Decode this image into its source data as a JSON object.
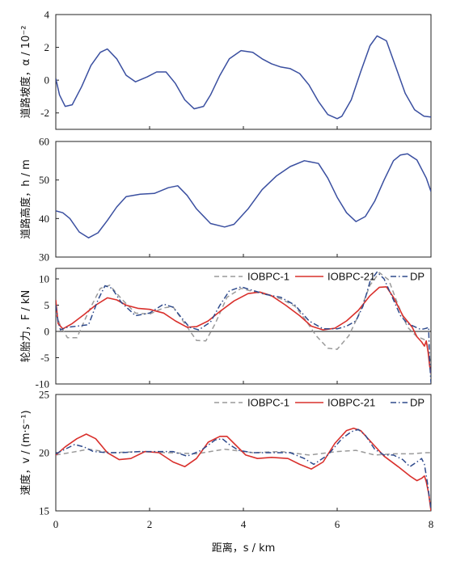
{
  "chart_data": [
    {
      "type": "line",
      "ylabel": "道路坡度，α / 10⁻²",
      "ylim": [
        -3,
        4
      ],
      "yticks": [
        "4",
        "2",
        "0",
        "-2"
      ],
      "ytick_values": [
        4,
        2,
        0,
        -2
      ],
      "xlim": [
        0,
        8
      ],
      "grid": false,
      "series": [
        {
          "color": "#3a4fa0",
          "x": [
            0,
            0.08,
            0.2,
            0.35,
            0.55,
            0.75,
            0.95,
            1.1,
            1.3,
            1.5,
            1.7,
            1.95,
            2.15,
            2.35,
            2.55,
            2.75,
            2.95,
            3.15,
            3.3,
            3.5,
            3.7,
            3.95,
            4.2,
            4.4,
            4.6,
            4.8,
            5.0,
            5.2,
            5.4,
            5.6,
            5.8,
            6.0,
            6.1,
            6.3,
            6.5,
            6.7,
            6.85,
            7.05,
            7.25,
            7.45,
            7.65,
            7.85,
            8.0
          ],
          "y": [
            0.1,
            -0.9,
            -1.6,
            -1.5,
            -0.4,
            0.9,
            1.7,
            1.9,
            1.3,
            0.3,
            -0.1,
            0.2,
            0.5,
            0.5,
            -0.2,
            -1.2,
            -1.75,
            -1.6,
            -0.9,
            0.3,
            1.3,
            1.8,
            1.7,
            1.3,
            1.0,
            0.8,
            0.7,
            0.4,
            -0.3,
            -1.3,
            -2.1,
            -2.35,
            -2.2,
            -1.2,
            0.5,
            2.1,
            2.7,
            2.4,
            0.8,
            -0.8,
            -1.8,
            -2.2,
            -2.25
          ]
        }
      ]
    },
    {
      "type": "line",
      "ylabel": "道路高度，h / m",
      "ylim": [
        30,
        60
      ],
      "yticks": [
        "60",
        "50",
        "40",
        "30"
      ],
      "ytick_values": [
        60,
        50,
        40,
        30
      ],
      "xlim": [
        0,
        8
      ],
      "grid": false,
      "series": [
        {
          "color": "#3a4fa0",
          "x": [
            0,
            0.15,
            0.3,
            0.5,
            0.7,
            0.9,
            1.1,
            1.3,
            1.5,
            1.8,
            2.1,
            2.4,
            2.6,
            2.8,
            3.0,
            3.3,
            3.6,
            3.8,
            4.1,
            4.4,
            4.7,
            5.0,
            5.3,
            5.6,
            5.8,
            6.0,
            6.2,
            6.4,
            6.6,
            6.8,
            7.0,
            7.2,
            7.35,
            7.5,
            7.7,
            7.9,
            8.0
          ],
          "y": [
            42,
            41.5,
            40,
            36.5,
            35,
            36.3,
            39.5,
            43,
            45.7,
            46.3,
            46.5,
            48,
            48.5,
            46,
            42.5,
            38.7,
            37.8,
            38.5,
            42.5,
            47.5,
            51,
            53.5,
            55,
            54.3,
            50.5,
            45.5,
            41.5,
            39.2,
            40.5,
            44.5,
            50,
            55,
            56.5,
            56.8,
            55.2,
            50.5,
            47
          ]
        }
      ]
    },
    {
      "type": "line",
      "ylabel": "轮胎力，F / kN",
      "ylim": [
        -10,
        12
      ],
      "yticks": [
        "10",
        "5",
        "0",
        "-5",
        "-10"
      ],
      "ytick_values": [
        10,
        5,
        0,
        -5,
        -10
      ],
      "xlim": [
        0,
        8
      ],
      "zero_line": true,
      "legend_position": "top-right",
      "grid": false,
      "series": [
        {
          "name": "IOBPC-1",
          "color": "#9a9a9a",
          "dash": "6,4",
          "x": [
            0,
            0.1,
            0.25,
            0.45,
            0.7,
            0.95,
            1.15,
            1.4,
            1.7,
            2.0,
            2.3,
            2.5,
            2.75,
            3.0,
            3.2,
            3.4,
            3.65,
            3.95,
            4.25,
            4.5,
            4.8,
            5.1,
            5.3,
            5.55,
            5.8,
            6.0,
            6.25,
            6.45,
            6.7,
            6.9,
            7.1,
            7.3,
            7.5,
            7.7,
            7.85,
            7.92,
            7.96,
            8.0
          ],
          "y": [
            3.5,
            1.0,
            -1.2,
            -1.2,
            3.8,
            8.2,
            8.8,
            6.2,
            3.5,
            3.3,
            4.5,
            4.7,
            1.5,
            -1.7,
            -1.8,
            1.5,
            6.5,
            8.2,
            7.5,
            7.0,
            6.2,
            4.8,
            2.5,
            -0.8,
            -3.2,
            -3.4,
            -0.8,
            3.0,
            8.8,
            11.2,
            9.8,
            5.0,
            0.8,
            -1.0,
            -1.5,
            -2.5,
            -4.5,
            -6.5
          ]
        },
        {
          "name": "IOBPC-21",
          "color": "#d9302c",
          "dash": "",
          "x": [
            0,
            0.05,
            0.15,
            0.35,
            0.6,
            0.85,
            1.1,
            1.3,
            1.5,
            1.75,
            2.0,
            2.3,
            2.55,
            2.8,
            3.0,
            3.25,
            3.5,
            3.8,
            4.1,
            4.35,
            4.6,
            4.9,
            5.2,
            5.45,
            5.7,
            5.95,
            6.2,
            6.45,
            6.7,
            6.9,
            7.05,
            7.2,
            7.4,
            7.6,
            7.7,
            7.8,
            7.86,
            7.9,
            7.94,
            7.97,
            8.0
          ],
          "y": [
            6.0,
            1.5,
            0.5,
            1.5,
            3.2,
            5.0,
            6.4,
            6.0,
            5.0,
            4.4,
            4.2,
            3.5,
            2.0,
            0.8,
            0.9,
            2.0,
            3.8,
            5.8,
            7.2,
            7.5,
            6.8,
            5.0,
            3.0,
            1.0,
            0.3,
            0.6,
            2.0,
            4.0,
            6.8,
            8.4,
            8.5,
            6.5,
            3.0,
            0.8,
            -1.0,
            -2.0,
            -2.8,
            -1.8,
            -4.0,
            -6.5,
            -8.0
          ]
        },
        {
          "name": "DP",
          "color": "#2e4a8c",
          "dash": "7,3,1.5,3",
          "x": [
            0,
            0.05,
            0.1,
            0.25,
            0.45,
            0.7,
            0.9,
            1.05,
            1.2,
            1.4,
            1.7,
            2.0,
            2.3,
            2.5,
            2.7,
            2.85,
            3.05,
            3.3,
            3.5,
            3.7,
            3.95,
            4.2,
            4.5,
            4.8,
            5.1,
            5.4,
            5.7,
            6.0,
            6.2,
            6.4,
            6.55,
            6.7,
            6.85,
            7.0,
            7.15,
            7.35,
            7.5,
            7.65,
            7.75,
            7.8,
            7.85,
            7.9,
            7.93,
            7.95,
            7.97,
            8.0
          ],
          "y": [
            5.0,
            1.8,
            0.3,
            0.8,
            1.0,
            1.3,
            6.0,
            8.7,
            8.2,
            5.5,
            3.0,
            3.5,
            5.2,
            4.6,
            2.4,
            0.8,
            0.3,
            1.8,
            5.0,
            7.7,
            8.5,
            7.8,
            7.0,
            6.5,
            5.0,
            2.0,
            0.5,
            0.5,
            1.0,
            2.0,
            4.8,
            9.5,
            11.3,
            10.0,
            7.0,
            3.0,
            1.5,
            0.9,
            0.5,
            0.4,
            0.5,
            0.6,
            0.7,
            0.8,
            -5.5,
            -9.8
          ]
        }
      ]
    },
    {
      "type": "line",
      "ylabel": "速度，v / (m·s⁻¹)",
      "xlabel": "距离，s / km",
      "ylim": [
        15,
        25
      ],
      "yticks": [
        "25",
        "20",
        "15"
      ],
      "ytick_values": [
        25,
        20,
        15
      ],
      "xticks": [
        "0",
        "2",
        "4",
        "6",
        "8"
      ],
      "xtick_values": [
        0,
        2,
        4,
        6,
        8
      ],
      "xlim": [
        0,
        8
      ],
      "legend_position": "top-right",
      "grid": false,
      "series": [
        {
          "name": "IOBPC-1",
          "color": "#9a9a9a",
          "dash": "6,4",
          "x": [
            0,
            0.3,
            0.7,
            1.2,
            1.8,
            2.4,
            3.0,
            3.6,
            4.2,
            4.8,
            5.4,
            6.0,
            6.4,
            6.8,
            7.2,
            7.6,
            7.9,
            8.0
          ],
          "y": [
            19.8,
            20.0,
            20.3,
            20.0,
            20.1,
            20.0,
            19.9,
            20.3,
            20.0,
            20.1,
            19.8,
            20.1,
            20.2,
            19.8,
            19.9,
            19.9,
            20.0,
            20.0
          ]
        },
        {
          "name": "IOBPC-21",
          "color": "#d9302c",
          "dash": "",
          "x": [
            0,
            0.2,
            0.45,
            0.65,
            0.85,
            1.1,
            1.35,
            1.6,
            1.9,
            2.2,
            2.5,
            2.75,
            3.0,
            3.25,
            3.5,
            3.65,
            3.8,
            4.05,
            4.3,
            4.6,
            4.95,
            5.2,
            5.45,
            5.7,
            5.95,
            6.2,
            6.35,
            6.5,
            6.75,
            7.0,
            7.3,
            7.55,
            7.7,
            7.8,
            7.86,
            7.9,
            7.95,
            8.0
          ],
          "y": [
            19.8,
            20.5,
            21.2,
            21.6,
            21.2,
            20.0,
            19.4,
            19.5,
            20.1,
            20.0,
            19.2,
            18.8,
            19.5,
            20.9,
            21.4,
            21.4,
            20.8,
            19.8,
            19.5,
            19.6,
            19.5,
            19.0,
            18.6,
            19.2,
            20.8,
            21.9,
            22.1,
            21.9,
            20.8,
            19.7,
            18.8,
            18.0,
            17.6,
            17.8,
            18.0,
            17.5,
            16.5,
            15.0
          ]
        },
        {
          "name": "DP",
          "color": "#2e4a8c",
          "dash": "7,3,1.5,3",
          "x": [
            0,
            0.2,
            0.4,
            0.6,
            0.8,
            1.1,
            1.4,
            1.8,
            2.2,
            2.5,
            2.8,
            3.1,
            3.4,
            3.55,
            3.7,
            3.9,
            4.2,
            4.6,
            5.0,
            5.3,
            5.5,
            5.8,
            6.1,
            6.3,
            6.45,
            6.6,
            6.8,
            7.0,
            7.2,
            7.4,
            7.55,
            7.7,
            7.8,
            7.86,
            7.92,
            7.97,
            8.0
          ],
          "y": [
            19.9,
            20.3,
            20.7,
            20.5,
            20.1,
            20.0,
            20.0,
            20.1,
            20.1,
            20.1,
            19.7,
            20.2,
            21.1,
            21.2,
            20.7,
            20.2,
            20.0,
            20.0,
            20.0,
            19.5,
            19.0,
            19.8,
            21.2,
            21.8,
            22.0,
            21.5,
            20.3,
            19.8,
            19.8,
            19.4,
            18.8,
            19.2,
            19.5,
            19.0,
            17.5,
            16.0,
            15.2
          ]
        }
      ]
    }
  ]
}
